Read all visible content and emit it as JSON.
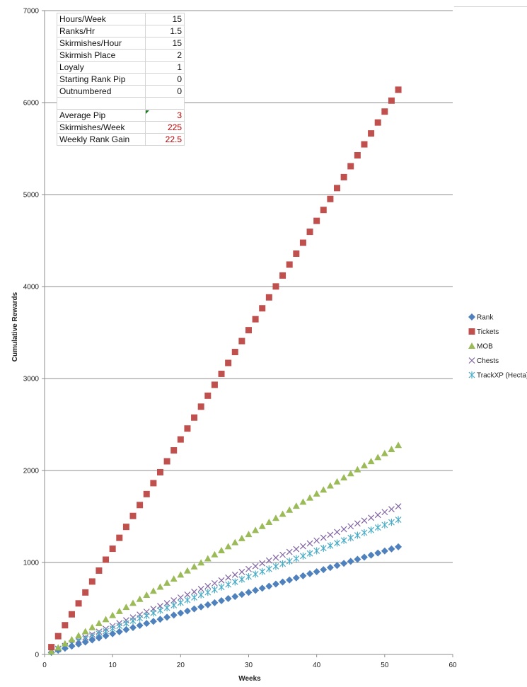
{
  "table": {
    "rows": [
      {
        "label": "Hours/Week",
        "value": "15",
        "highlight": false
      },
      {
        "label": "Ranks/Hr",
        "value": "1.5",
        "highlight": false
      },
      {
        "label": "Skirmishes/Hour",
        "value": "15",
        "highlight": false
      },
      {
        "label": "Skirmish Place",
        "value": "2",
        "highlight": false
      },
      {
        "label": "Loyaly",
        "value": "1",
        "highlight": false
      },
      {
        "label": "Starting Rank Pip",
        "value": "0",
        "highlight": false
      },
      {
        "label": "Outnumbered",
        "value": "0",
        "highlight": false
      },
      {
        "label": "",
        "value": "",
        "highlight": false
      },
      {
        "label": "Average Pip",
        "value": "3",
        "highlight": true
      },
      {
        "label": "Skirmishes/Week",
        "value": "225",
        "highlight": true
      },
      {
        "label": "Weekly Rank Gain",
        "value": "22.5",
        "highlight": true
      }
    ]
  },
  "chart_data": {
    "type": "scatter",
    "title": "",
    "xlabel": "Weeks",
    "ylabel": "Cumulative Rewards",
    "xlim": [
      0,
      60
    ],
    "ylim": [
      0,
      7000
    ],
    "xticks": [
      0,
      10,
      20,
      30,
      40,
      50,
      60
    ],
    "yticks": [
      0,
      1000,
      2000,
      3000,
      4000,
      5000,
      6000,
      7000
    ],
    "grid": "horizontal",
    "legend_position": "right",
    "series": [
      {
        "name": "Rank",
        "marker": "diamond",
        "color": "#4f81bd",
        "x_start": 1,
        "x_end": 52,
        "y_start": 22.5,
        "y_end": 1170
      },
      {
        "name": "Tickets",
        "marker": "square",
        "color": "#c0504d",
        "x_start": 1,
        "x_end": 52,
        "y_start": 80,
        "y_end": 6140
      },
      {
        "name": "MOB",
        "marker": "triangle",
        "color": "#9bbb59",
        "x_start": 1,
        "x_end": 52,
        "y_start": 30,
        "y_end": 2275
      },
      {
        "name": "Chests",
        "marker": "x",
        "color": "#8064a2",
        "x_start": 1,
        "x_end": 52,
        "y_start": 31,
        "y_end": 1610
      },
      {
        "name": "TrackXP (Hecta)",
        "marker": "star",
        "color": "#4bacc6",
        "x_start": 1,
        "x_end": 52,
        "y_start": 28,
        "y_end": 1465
      }
    ]
  }
}
